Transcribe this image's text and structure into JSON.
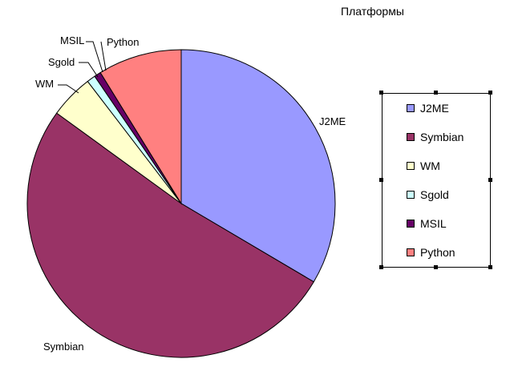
{
  "chart_data": {
    "type": "pie",
    "title": "Платформы",
    "slices": [
      {
        "label": "J2ME",
        "value": 33.5,
        "color": "#9999FF"
      },
      {
        "label": "Symbian",
        "value": 51.5,
        "color": "#993366"
      },
      {
        "label": "WM",
        "value": 4.6,
        "color": "#FFFFCC"
      },
      {
        "label": "Sgold",
        "value": 0.9,
        "color": "#CCFFFF"
      },
      {
        "label": "MSIL",
        "value": 0.7,
        "color": "#660066"
      },
      {
        "label": "Python",
        "value": 8.8,
        "color": "#FF8080"
      }
    ],
    "legend_position": "right"
  }
}
